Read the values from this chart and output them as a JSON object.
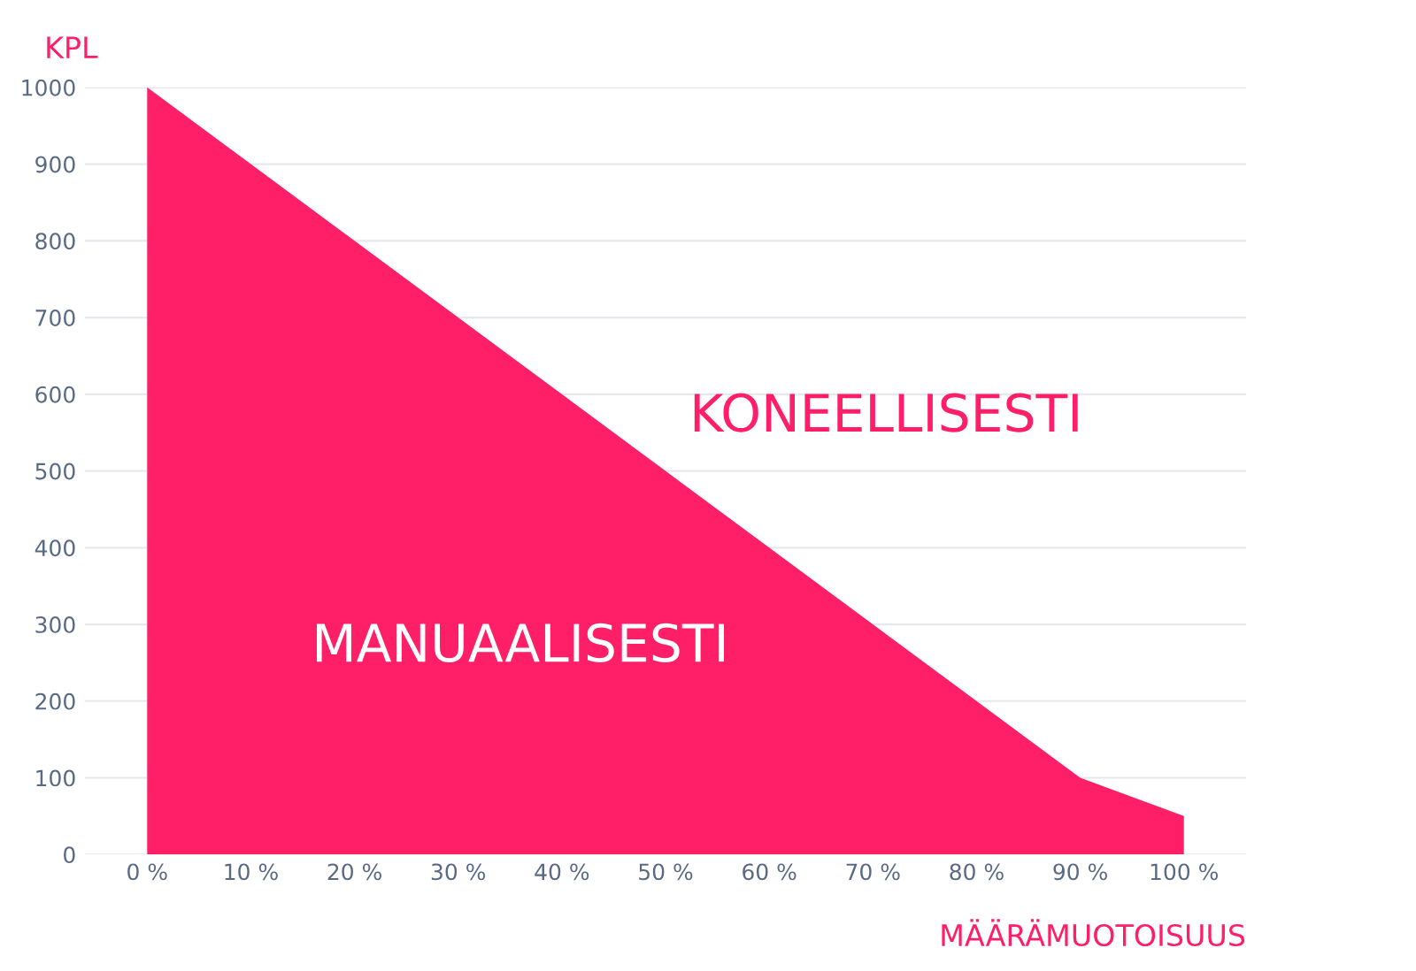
{
  "chart_data": {
    "type": "area",
    "xlabel": "MÄÄRÄMUOTOISUUS",
    "ylabel": "KPL",
    "x": [
      0,
      10,
      20,
      30,
      40,
      50,
      60,
      70,
      80,
      90,
      100
    ],
    "series": [
      {
        "color": "#ff1f68",
        "values": [
          1000,
          900,
          800,
          700,
          600,
          500,
          400,
          300,
          200,
          100,
          50
        ]
      }
    ],
    "xlim": [
      -6,
      106
    ],
    "ylim": [
      0,
      1000
    ],
    "xticks": [
      {
        "value": 0,
        "label": "0 %"
      },
      {
        "value": 10,
        "label": "10 %"
      },
      {
        "value": 20,
        "label": "20 %"
      },
      {
        "value": 30,
        "label": "30 %"
      },
      {
        "value": 40,
        "label": "40 %"
      },
      {
        "value": 50,
        "label": "50 %"
      },
      {
        "value": 60,
        "label": "60 %"
      },
      {
        "value": 70,
        "label": "70 %"
      },
      {
        "value": 80,
        "label": "80 %"
      },
      {
        "value": 90,
        "label": "90 %"
      },
      {
        "value": 100,
        "label": "100 %"
      }
    ],
    "yticks": [
      0,
      100,
      200,
      300,
      400,
      500,
      600,
      700,
      800,
      900,
      1000
    ],
    "annotations": [
      "KONEELLISESTI",
      "MANUAALISESTI"
    ],
    "grid": "y"
  }
}
